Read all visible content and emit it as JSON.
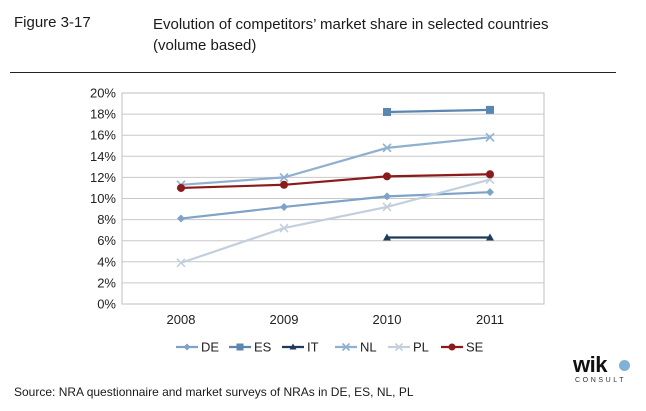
{
  "figure": {
    "label": "Figure 3-17",
    "title_line1": "Evolution of competitors’ market share in selected countries",
    "title_line2": "(volume based)"
  },
  "source": "Source:  NRA questionnaire and market surveys of NRAs in DE, ES, NL, PL",
  "logo": {
    "word": "wik",
    "sub": "CONSULT"
  },
  "chart_data": {
    "type": "line",
    "x": [
      "2008",
      "2009",
      "2010",
      "2011"
    ],
    "ylim": [
      0,
      20
    ],
    "ytick_step": 2,
    "ytick_format": "%",
    "grid": true,
    "legend_position": "bottom",
    "series": [
      {
        "name": "DE",
        "values": [
          8.1,
          9.2,
          10.2,
          10.6
        ],
        "color": "#7ea3c6",
        "marker": "diamond"
      },
      {
        "name": "ES",
        "values": [
          null,
          null,
          18.2,
          18.4
        ],
        "color": "#5b86b0",
        "marker": "square"
      },
      {
        "name": "IT",
        "values": [
          null,
          null,
          6.3,
          6.3
        ],
        "color": "#1f3b5c",
        "marker": "triangle"
      },
      {
        "name": "NL",
        "values": [
          11.3,
          12.0,
          14.8,
          15.8
        ],
        "color": "#8fb0cf",
        "marker": "x"
      },
      {
        "name": "PL",
        "values": [
          3.9,
          7.2,
          9.2,
          11.8
        ],
        "color": "#c3cfdd",
        "marker": "x"
      },
      {
        "name": "SE",
        "values": [
          11.0,
          11.3,
          12.1,
          12.3
        ],
        "color": "#8b1a1a",
        "marker": "circle"
      }
    ]
  }
}
